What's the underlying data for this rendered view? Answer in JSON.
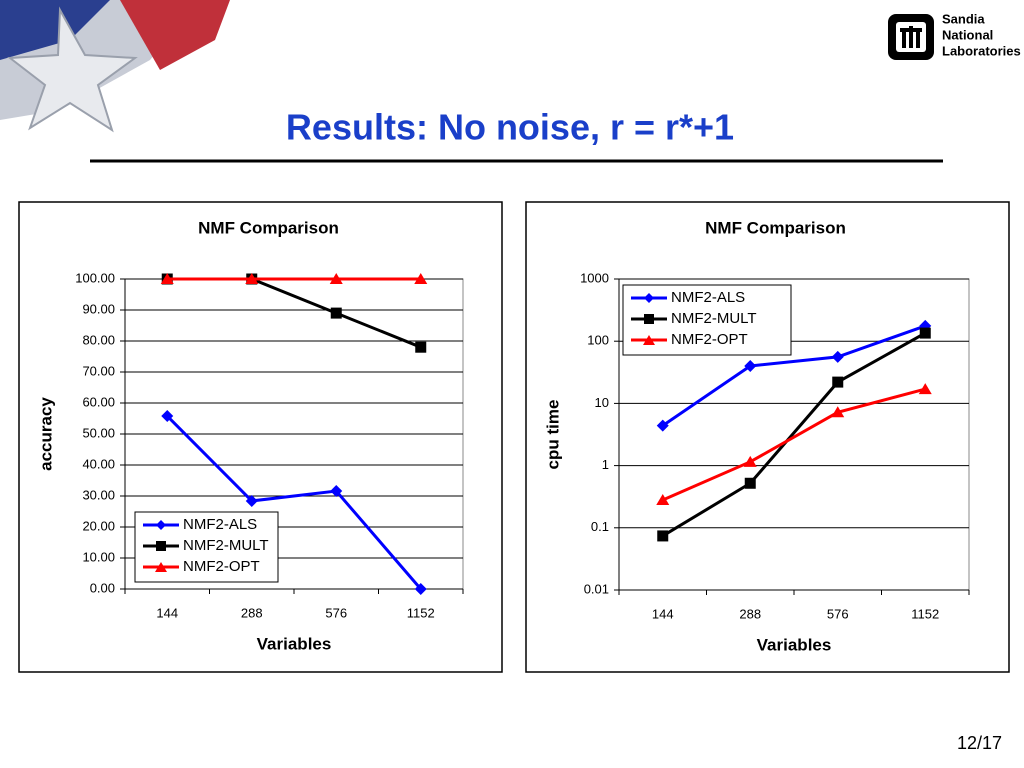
{
  "title": "Results: No noise, r = r*+1",
  "logo": [
    "Sandia",
    "National",
    "Laboratories"
  ],
  "page_number": "12/17",
  "chart_data": [
    {
      "type": "line",
      "title": "NMF Comparison",
      "x_label": "Variables",
      "y_label": "accuracy",
      "categories": [
        "144",
        "288",
        "576",
        "1152"
      ],
      "series": [
        {
          "name": "NMF2-ALS",
          "color": "#0000ff",
          "marker": "diamond",
          "values": [
            55.8,
            28.4,
            31.6,
            0.0
          ]
        },
        {
          "name": "NMF2-MULT",
          "color": "#000000",
          "marker": "square",
          "values": [
            100,
            100,
            89,
            78
          ]
        },
        {
          "name": "NMF2-OPT",
          "color": "#ff0000",
          "marker": "triangle",
          "values": [
            100,
            100,
            100,
            100
          ]
        }
      ],
      "ylim": [
        0,
        100
      ],
      "yticks": [
        {
          "value": 0,
          "label": "0.00"
        },
        {
          "value": 10,
          "label": "10.00"
        },
        {
          "value": 20,
          "label": "20.00"
        },
        {
          "value": 30,
          "label": "30.00"
        },
        {
          "value": 40,
          "label": "40.00"
        },
        {
          "value": 50,
          "label": "50.00"
        },
        {
          "value": 60,
          "label": "60.00"
        },
        {
          "value": 70,
          "label": "70.00"
        },
        {
          "value": 80,
          "label": "80.00"
        },
        {
          "value": 90,
          "label": "90.00"
        },
        {
          "value": 100,
          "label": "100.00"
        }
      ],
      "grid": true,
      "log_scale": false,
      "legend": "lower left"
    },
    {
      "type": "line",
      "title": "NMF Comparison",
      "x_label": "Variables",
      "y_label": "cpu time",
      "categories": [
        "144",
        "288",
        "576",
        "1152"
      ],
      "series": [
        {
          "name": "NMF2-ALS",
          "color": "#0000ff",
          "marker": "diamond",
          "values": [
            4.4,
            40,
            56,
            176
          ]
        },
        {
          "name": "NMF2-MULT",
          "color": "#000000",
          "marker": "square",
          "values": [
            0.074,
            0.52,
            22,
            135
          ]
        },
        {
          "name": "NMF2-OPT",
          "color": "#ff0000",
          "marker": "triangle",
          "values": [
            0.28,
            1.15,
            7.2,
            17
          ]
        }
      ],
      "ylim": [
        0.01,
        1000
      ],
      "yticks": [
        0.01,
        0.1,
        1,
        10,
        100,
        1000
      ],
      "grid": true,
      "log_scale": true,
      "legend": "upper left"
    }
  ]
}
